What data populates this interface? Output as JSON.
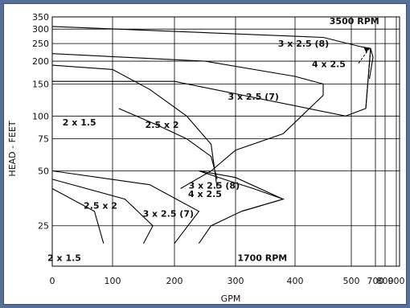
{
  "chart_data": {
    "type": "area",
    "xlabel": "GPM",
    "ylabel": "HEAD - FEET",
    "xlim": [
      0,
      900
    ],
    "ylim": [
      15,
      350
    ],
    "x_ticks": [
      0,
      100,
      200,
      300,
      400,
      500,
      700,
      800,
      900
    ],
    "x_tick_labels": [
      "0",
      "100",
      "200",
      "300",
      "400",
      "500",
      "700",
      "800",
      "900"
    ],
    "y_ticks": [
      25,
      50,
      75,
      100,
      150,
      200,
      250,
      300,
      350
    ],
    "y_tick_labels": [
      "25",
      "50",
      "75",
      "100",
      "150",
      "200",
      "250",
      "300",
      "350"
    ],
    "grid": true,
    "speed_labels": [
      "3500 RPM",
      "1700 RPM"
    ],
    "regions": [
      {
        "name": "3 x 2.5 (8)",
        "speed": "3500 RPM",
        "points": [
          [
            0,
            310
          ],
          [
            450,
            270
          ],
          [
            580,
            240
          ],
          [
            660,
            235
          ],
          [
            620,
            110
          ],
          [
            490,
            100
          ],
          [
            200,
            155
          ],
          [
            0,
            155
          ]
        ]
      },
      {
        "name": "4 x 2.5",
        "speed": "3500 RPM",
        "points": [
          [
            620,
            110
          ],
          [
            660,
            235
          ],
          [
            680,
            210
          ],
          [
            650,
            160
          ]
        ]
      },
      {
        "name": "3 x 2.5 (7)",
        "speed": "3500 RPM",
        "points": [
          [
            0,
            220
          ],
          [
            250,
            200
          ],
          [
            400,
            165
          ],
          [
            450,
            150
          ],
          [
            450,
            130
          ],
          [
            380,
            80
          ],
          [
            300,
            65
          ],
          [
            260,
            50
          ],
          [
            210,
            40
          ]
        ]
      },
      {
        "name": "2 x 1.5",
        "speed": "3500 RPM",
        "points": [
          [
            0,
            190
          ],
          [
            100,
            180
          ],
          [
            160,
            140
          ],
          [
            220,
            100
          ],
          [
            260,
            70
          ],
          [
            270,
            40
          ]
        ]
      },
      {
        "name": "2.5 x 2",
        "speed": "3500 RPM",
        "points": [
          [
            110,
            110
          ],
          [
            170,
            90
          ],
          [
            220,
            75
          ],
          [
            260,
            60
          ],
          [
            270,
            45
          ]
        ]
      },
      {
        "name": "3 x 2.5 (8)",
        "speed": "1700 RPM",
        "points": [
          [
            240,
            50
          ],
          [
            290,
            44
          ],
          [
            330,
            40
          ],
          [
            380,
            35
          ],
          [
            310,
            30
          ],
          [
            260,
            25
          ],
          [
            240,
            20
          ]
        ]
      },
      {
        "name": "4 x 2.5",
        "speed": "1700 RPM",
        "points": [
          [
            240,
            50
          ],
          [
            300,
            46
          ],
          [
            380,
            35
          ],
          [
            310,
            30
          ]
        ]
      },
      {
        "name": "2 x 1.5",
        "speed": "1700 RPM",
        "points": [
          [
            0,
            40
          ],
          [
            70,
            30
          ],
          [
            85,
            20
          ]
        ]
      },
      {
        "name": "2.5 x 2",
        "speed": "1700 RPM",
        "points": [
          [
            0,
            45
          ],
          [
            120,
            35
          ],
          [
            165,
            25
          ],
          [
            150,
            20
          ]
        ]
      },
      {
        "name": "3 x 2.5 (7)",
        "speed": "1700 RPM",
        "points": [
          [
            0,
            50
          ],
          [
            160,
            42
          ],
          [
            240,
            30
          ],
          [
            200,
            20
          ]
        ]
      }
    ],
    "labels": [
      {
        "text": "3500 RPM",
        "x": 525,
        "y": 320
      },
      {
        "text": "3 x 2.5 (8)",
        "x": 415,
        "y": 240
      },
      {
        "text": "4 x 2.5",
        "x": 460,
        "y": 185
      },
      {
        "text": "3 x 2.5 (7)",
        "x": 330,
        "y": 123
      },
      {
        "text": "2 x 1.5",
        "x": 45,
        "y": 89
      },
      {
        "text": "2.5 x 2",
        "x": 180,
        "y": 86
      },
      {
        "text": "3 x 2.5 (8)",
        "x": 265,
        "y": 40
      },
      {
        "text": "4 x 2.5",
        "x": 250,
        "y": 36
      },
      {
        "text": "2.5 x 2",
        "x": 80,
        "y": 31
      },
      {
        "text": "3 x 2.5 (7)",
        "x": 190,
        "y": 28
      },
      {
        "text": "2 x 1.5",
        "x": 20,
        "y": 16
      },
      {
        "text": "1700 RPM",
        "x": 345,
        "y": 16
      }
    ]
  }
}
